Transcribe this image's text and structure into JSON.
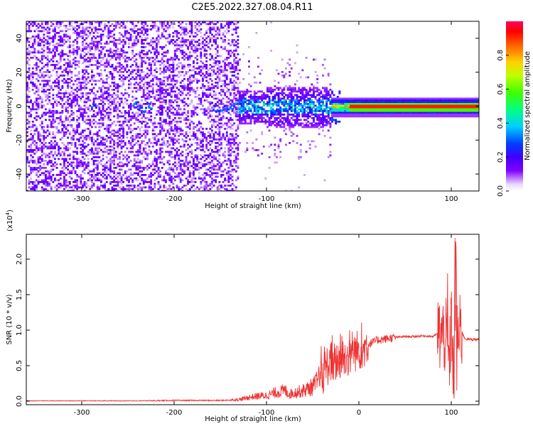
{
  "title": "C2E5.2022.327.08.04.R11",
  "colors": {
    "snr_line": "#ee3333",
    "spectrogram_low": "#7a00ff",
    "spectrogram_high": "#ff0033"
  },
  "chart_data": [
    {
      "type": "heatmap",
      "xlabel": "Height of straight line (km)",
      "ylabel": "Frequency (Hz)",
      "xlim": [
        -360,
        130
      ],
      "ylim": [
        -50,
        50
      ],
      "xticks": [
        -300,
        -200,
        -100,
        0,
        100
      ],
      "xtick_labels": [
        "-300",
        "-200",
        "-100",
        "0",
        "100"
      ],
      "yticks": [
        -40,
        -20,
        0,
        20,
        40
      ],
      "ytick_labels": [
        "-40",
        "-20",
        "0",
        "20",
        "40"
      ],
      "colorbar": {
        "label": "Normalized spectral amplitude",
        "range": [
          0,
          1
        ],
        "ticks": [
          0.0,
          0.2,
          0.4,
          0.6,
          0.8
        ],
        "tick_labels": [
          "0.0",
          "0.2",
          "0.4",
          "0.6",
          "0.8"
        ],
        "colormap": "rainbow (purple to red)"
      },
      "carrier_line": {
        "frequency": 0,
        "strong_from_x": -20,
        "description_values": [
          {
            "x": -140,
            "amplitude": 0.3
          },
          {
            "x": -100,
            "amplitude": 0.4
          },
          {
            "x": -60,
            "amplitude": 0.45
          },
          {
            "x": -30,
            "amplitude": 0.6
          },
          {
            "x": -10,
            "amplitude": 0.9
          },
          {
            "x": 100,
            "amplitude": 0.95
          }
        ]
      },
      "noise_region_x": [
        -360,
        -130
      ],
      "grid": false
    },
    {
      "type": "line",
      "xlabel": "Height of straight line (km)",
      "ylabel": "SNR (10 * v/v)",
      "y_multiplier": "(x10",
      "y_multiplier_exp": "4",
      "y_multiplier_close": ")",
      "xlim": [
        -360,
        130
      ],
      "ylim": [
        -0.05,
        2.35
      ],
      "xticks": [
        -300,
        -200,
        -100,
        0,
        100
      ],
      "xtick_labels": [
        "-300",
        "-200",
        "-100",
        "0",
        "100"
      ],
      "yticks": [
        0.0,
        0.5,
        1.0,
        1.5,
        2.0
      ],
      "ytick_labels": [
        "0.0",
        "0.5",
        "1.0",
        "1.5",
        "2.0"
      ],
      "grid": false,
      "series": [
        {
          "x": [
            -360,
            -300,
            -250,
            -200,
            -150,
            -130,
            -120,
            -110,
            -100,
            -95,
            -90,
            -80,
            -75,
            -70,
            -60,
            -50,
            -40,
            -35,
            -30,
            -25,
            -20,
            -15,
            -10,
            -5,
            0,
            10,
            20,
            30,
            40,
            50,
            60,
            70,
            80,
            85,
            90,
            95,
            98,
            100,
            103,
            105,
            107,
            110,
            115,
            120,
            130
          ],
          "y": [
            0.0,
            0.0,
            0.0,
            0.01,
            0.01,
            0.02,
            0.05,
            0.07,
            0.08,
            0.1,
            0.12,
            0.15,
            0.1,
            0.12,
            0.15,
            0.2,
            0.35,
            0.5,
            0.55,
            0.55,
            0.6,
            0.6,
            0.65,
            0.7,
            0.72,
            0.8,
            0.86,
            0.88,
            0.9,
            0.91,
            0.91,
            0.92,
            0.91,
            0.95,
            0.93,
            0.9,
            0.5,
            1.2,
            0.3,
            1.9,
            0.8,
            1.0,
            0.88,
            0.87,
            0.87
          ],
          "spikes": [
            {
              "x": -20,
              "y": 0.95
            },
            {
              "x": -30,
              "y": 0.82
            },
            {
              "x": -10,
              "y": 1.0
            },
            {
              "x": 96,
              "y": 1.8
            },
            {
              "x": 102,
              "y": 0.1
            },
            {
              "x": 104,
              "y": 2.3
            },
            {
              "x": 106,
              "y": 0.15
            }
          ]
        }
      ]
    }
  ]
}
